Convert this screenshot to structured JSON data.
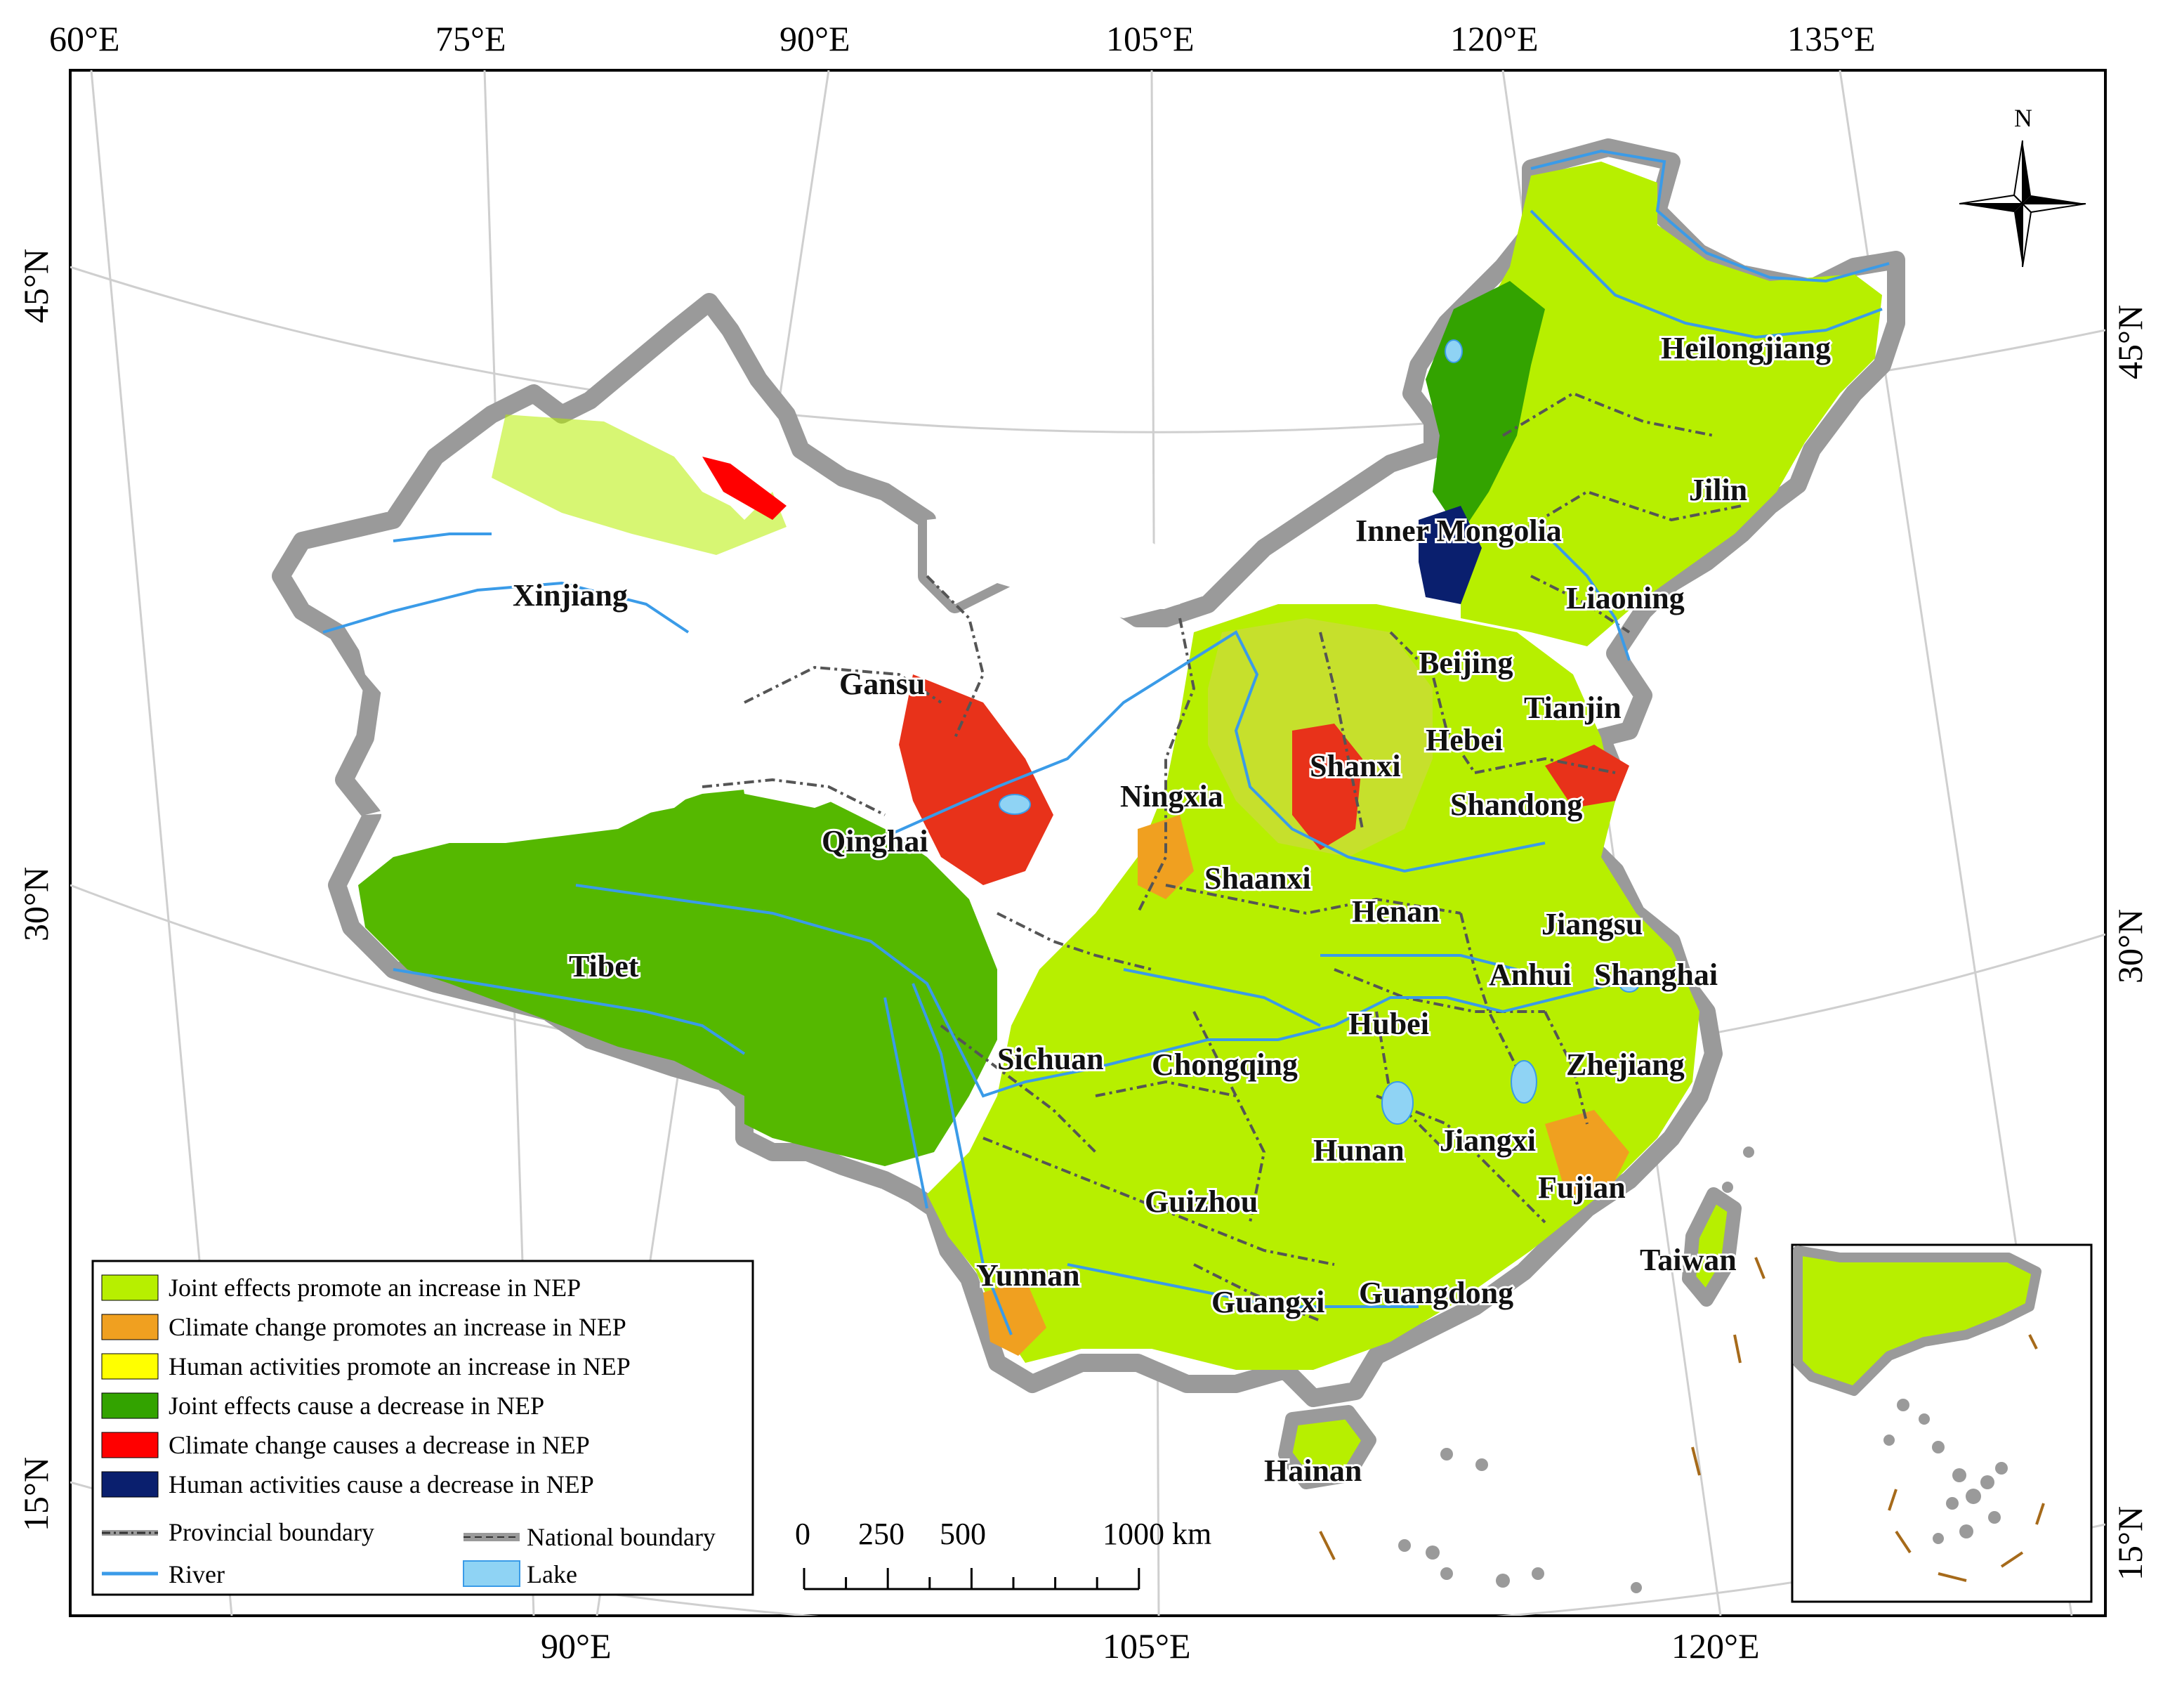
{
  "axes": {
    "top_lon": [
      "60°E",
      "75°E",
      "90°E",
      "105°E",
      "120°E",
      "135°E"
    ],
    "bottom_lon": [
      "90°E",
      "105°E",
      "120°E"
    ],
    "left_lat": [
      "45°N",
      "30°N",
      "15°N"
    ],
    "right_lat": [
      "45°N",
      "30°N",
      "15°N"
    ]
  },
  "north_arrow": {
    "label": "N"
  },
  "provinces": [
    "Heilongjiang",
    "Jilin",
    "Inner Mongolia",
    "Liaoning",
    "Beijing",
    "Tianjin",
    "Hebei",
    "Shanxi",
    "Shandong",
    "Ningxia",
    "Gansu",
    "Xinjiang",
    "Qinghai",
    "Shaanxi",
    "Henan",
    "Jiangsu",
    "Anhui",
    "Shanghai",
    "Hubei",
    "Tibet",
    "Sichuan",
    "Chongqing",
    "Zhejiang",
    "Hunan",
    "Jiangxi",
    "Fujian",
    "Guizhou",
    "Taiwan",
    "Yunnan",
    "Guangxi",
    "Guangdong",
    "Hainan"
  ],
  "legend": {
    "categories": [
      {
        "label": "Joint effects promote an increase in NEP",
        "color": "#b7ef00"
      },
      {
        "label": "Climate change promotes an increase in NEP",
        "color": "#f0a020"
      },
      {
        "label": "Human activities promote an increase in NEP",
        "color": "#ffff00"
      },
      {
        "label": "Joint effects cause a decrease in NEP",
        "color": "#33a300"
      },
      {
        "label": "Climate change causes a decrease in NEP",
        "color": "#ff0000"
      },
      {
        "label": "Human activities cause a decrease in NEP",
        "color": "#0a1f6e"
      }
    ],
    "lines": {
      "provincial": "Provincial boundary",
      "national": "National boundary",
      "river": "River",
      "lake": "Lake"
    },
    "colors": {
      "river": "#3a9be8",
      "lake": "#8fd3f4",
      "national": "#9a9a9a",
      "provincial": "#555555"
    }
  },
  "scale_bar": {
    "labels": [
      "0",
      "250",
      "500",
      "1000 km"
    ]
  }
}
